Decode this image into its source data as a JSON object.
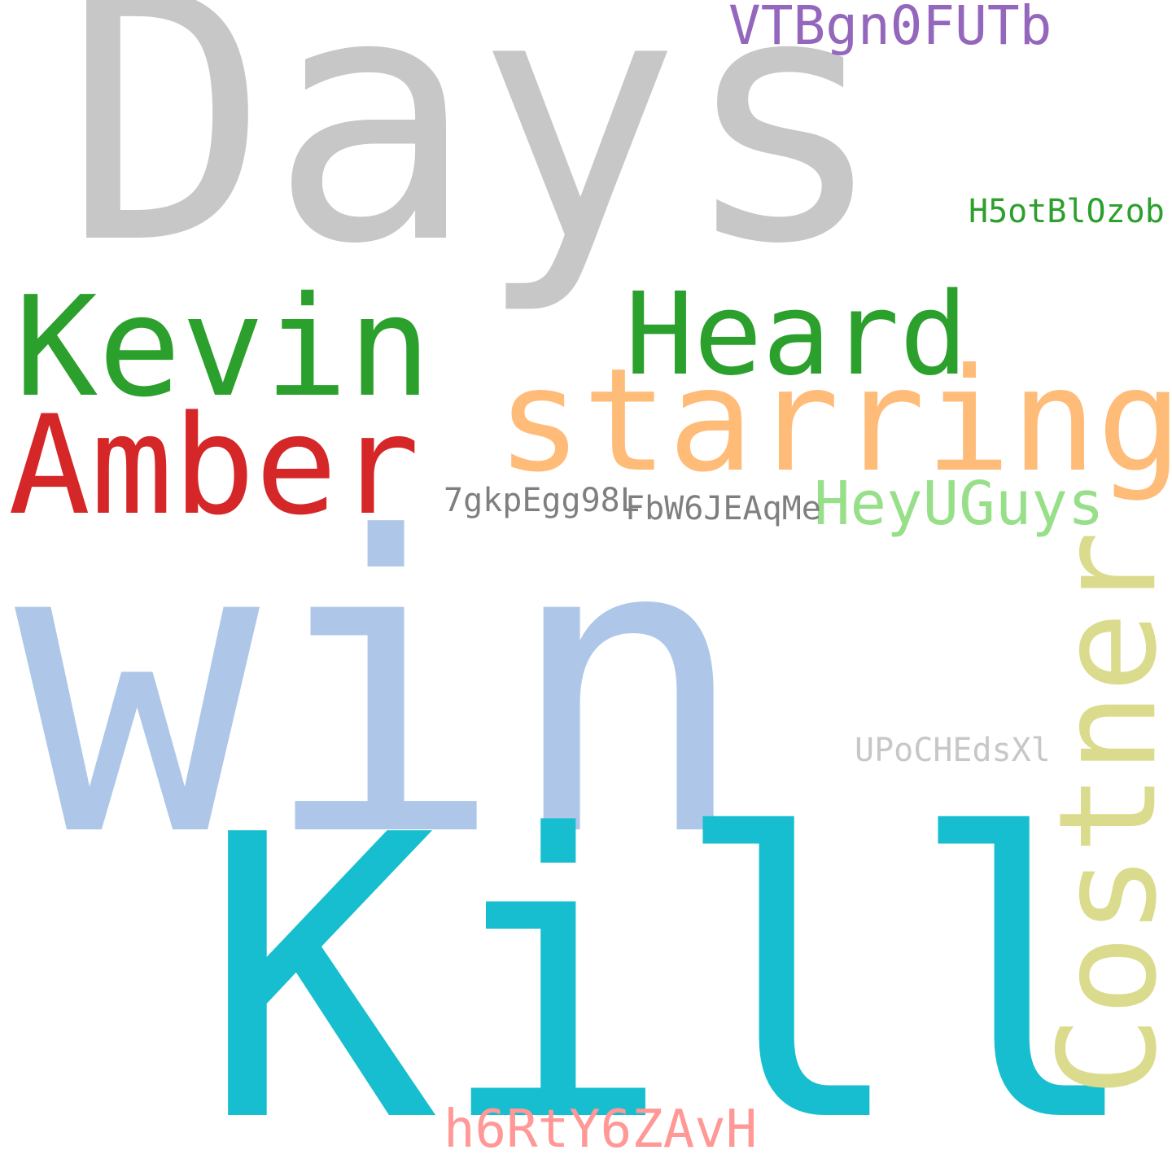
{
  "words": [
    {
      "id": "win",
      "text": "win",
      "color": "#aec7e8"
    },
    {
      "id": "kill",
      "text": "Kill",
      "color": "#17becf"
    },
    {
      "id": "days",
      "text": "Days",
      "color": "#c7c7c7"
    },
    {
      "id": "starring",
      "text": "starring",
      "color": "#ffbb78"
    },
    {
      "id": "kevin",
      "text": "Kevin",
      "color": "#2ca02c"
    },
    {
      "id": "amber",
      "text": "Amber",
      "color": "#d62728"
    },
    {
      "id": "heard",
      "text": "Heard",
      "color": "#2ca02c"
    },
    {
      "id": "costner",
      "text": "Costner",
      "color": "#dbdb8d"
    },
    {
      "id": "heyuguys",
      "text": "HeyUGuys",
      "color": "#98df8a"
    },
    {
      "id": "vtb",
      "text": "VTBgn0FUTb",
      "color": "#9467bd"
    },
    {
      "id": "h6r",
      "text": "h6RtY6ZAvH",
      "color": "#ff9896"
    },
    {
      "id": "7gk",
      "text": "7gkpEgg98L",
      "color": "#7f7f7f"
    },
    {
      "id": "fbw",
      "text": "FbW6JEAqMe",
      "color": "#7f7f7f"
    },
    {
      "id": "upo",
      "text": "UPoCHEdsXl",
      "color": "#c7c7c7"
    },
    {
      "id": "h5o",
      "text": "H5otBlOzob",
      "color": "#2ca02c"
    }
  ]
}
